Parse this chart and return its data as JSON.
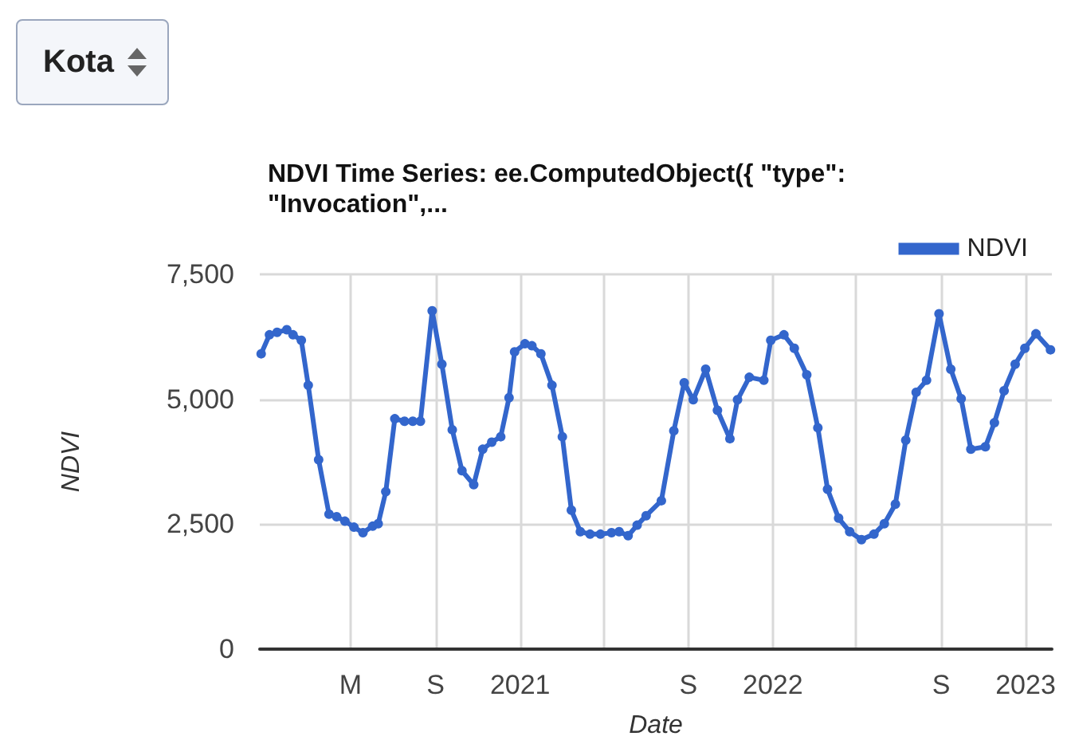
{
  "chart_data": {
    "type": "line",
    "title": "NDVI Time Series: ee.ComputedObject({ \"type\": \"Invocation\",...",
    "xlabel": "Date",
    "ylabel": "NDVI",
    "annotations": [
      "Kota"
    ],
    "x": [
      "2019-12-24",
      "2020-01-05",
      "2020-01-16",
      "2020-01-30",
      "2020-02-08",
      "2020-02-20",
      "2020-03-01",
      "2020-03-16",
      "2020-03-31",
      "2020-04-11",
      "2020-04-23",
      "2020-05-06",
      "2020-05-19",
      "2020-06-02",
      "2020-06-10",
      "2020-06-21",
      "2020-07-04",
      "2020-07-18",
      "2020-07-30",
      "2020-08-10",
      "2020-08-27",
      "2020-09-10",
      "2020-09-25",
      "2020-10-09",
      "2020-10-26",
      "2020-11-08",
      "2020-11-21",
      "2020-12-04",
      "2020-12-16",
      "2020-12-24",
      "2021-01-08",
      "2021-01-18",
      "2021-01-31",
      "2021-02-16",
      "2021-03-03",
      "2021-03-16",
      "2021-03-29",
      "2021-04-12",
      "2021-04-27",
      "2021-05-13",
      "2021-05-24",
      "2021-06-06",
      "2021-06-19",
      "2021-07-02",
      "2021-07-24",
      "2021-08-11",
      "2021-08-26",
      "2021-09-08",
      "2021-09-26",
      "2021-10-13",
      "2021-10-31",
      "2021-11-11",
      "2021-11-28",
      "2021-12-19",
      "2021-12-29",
      "2022-01-17",
      "2022-02-01",
      "2022-02-19",
      "2022-03-07",
      "2022-03-21",
      "2022-04-06",
      "2022-04-22",
      "2022-05-09",
      "2022-05-27",
      "2022-06-11",
      "2022-06-27",
      "2022-07-12",
      "2022-07-27",
      "2022-08-11",
      "2022-08-29",
      "2022-09-15",
      "2022-09-30",
      "2022-10-14",
      "2022-11-04",
      "2022-11-17",
      "2022-12-01",
      "2022-12-17",
      "2022-12-31",
      "2023-01-16",
      "2023-02-06"
    ],
    "series": [
      {
        "name": "NDVI",
        "color": "#3366cc",
        "values": [
          5910,
          6290,
          6340,
          6390,
          6290,
          6180,
          5280,
          3790,
          2700,
          2650,
          2560,
          2440,
          2330,
          2460,
          2510,
          3150,
          4610,
          4560,
          4560,
          4560,
          6770,
          5700,
          4390,
          3570,
          3290,
          4000,
          4140,
          4250,
          5030,
          5950,
          6110,
          6070,
          5910,
          5280,
          4250,
          2780,
          2350,
          2300,
          2300,
          2330,
          2350,
          2270,
          2480,
          2670,
          2970,
          4370,
          5330,
          4990,
          5600,
          4780,
          4210,
          4990,
          5440,
          5380,
          6180,
          6290,
          6020,
          5490,
          4430,
          3200,
          2620,
          2350,
          2190,
          2300,
          2510,
          2900,
          4180,
          5140,
          5380,
          6710,
          5600,
          5010,
          4000,
          4050,
          4530,
          5170,
          5700,
          6020,
          6310,
          5990
        ]
      }
    ],
    "xlim": [
      "2019-12-22",
      "2023-02-08"
    ],
    "xticks": [
      {
        "value": "2020-05-01",
        "label": "M"
      },
      {
        "value": "2020-09-01",
        "label": "S"
      },
      {
        "value": "2021-01-01",
        "label": "2021"
      },
      {
        "value": "2021-05-01",
        "label": null
      },
      {
        "value": "2021-09-01",
        "label": "S"
      },
      {
        "value": "2022-01-01",
        "label": "2022"
      },
      {
        "value": "2022-05-01",
        "label": null
      },
      {
        "value": "2022-09-01",
        "label": "S"
      },
      {
        "value": "2023-01-01",
        "label": "2023"
      }
    ],
    "ylim": [
      0,
      7500
    ],
    "yticks": [
      {
        "value": 0,
        "label": "0"
      },
      {
        "value": 2500,
        "label": "2,500"
      },
      {
        "value": 5000,
        "label": "5,000"
      },
      {
        "value": 7500,
        "label": "7,500"
      }
    ],
    "grid": true,
    "legend": "top right",
    "marker": "circle",
    "line_style": "solid"
  }
}
